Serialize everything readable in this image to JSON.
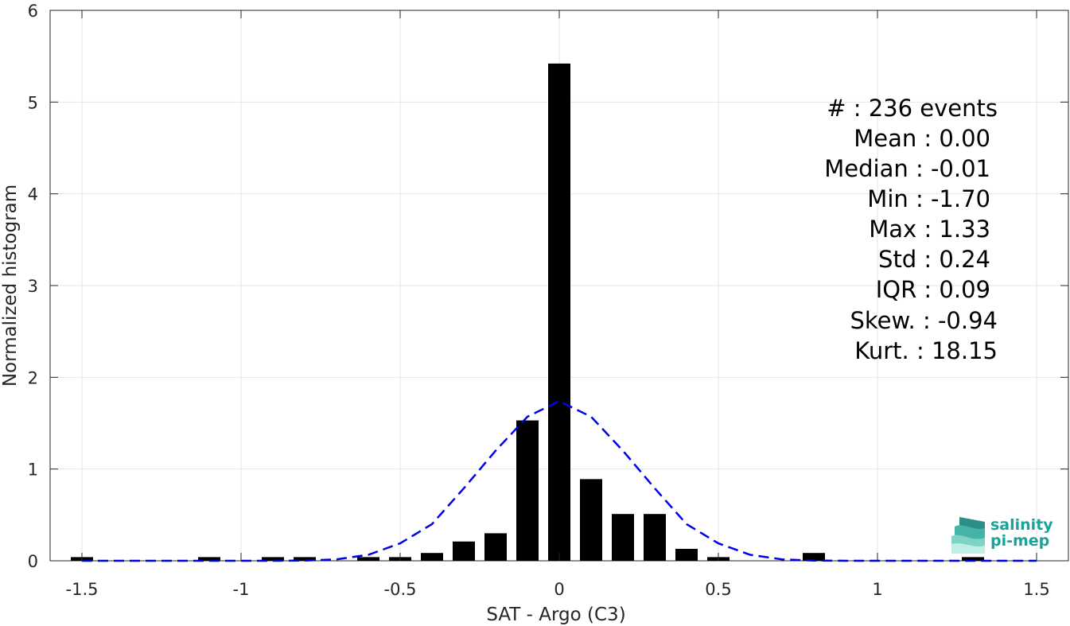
{
  "chart_data": {
    "type": "bar",
    "title": "",
    "xlabel": "SAT - Argo (C3)",
    "ylabel": "Normalized histogram",
    "xlim": [
      -1.6,
      1.6
    ],
    "ylim": [
      0,
      6
    ],
    "grid": true,
    "xticks": [
      -1.5,
      -1,
      -0.5,
      0,
      0.5,
      1,
      1.5
    ],
    "xtick_labels": [
      "-1.5",
      "-1",
      "-0.5",
      "0",
      "0.5",
      "1",
      "1.5"
    ],
    "yticks": [
      0,
      1,
      2,
      3,
      4,
      5,
      6
    ],
    "ytick_labels": [
      "0",
      "1",
      "2",
      "3",
      "4",
      "5",
      "6"
    ],
    "bar_color": "#000000",
    "bin_width": 0.1,
    "bins": [
      {
        "x": -1.5,
        "value": 0.04
      },
      {
        "x": -1.1,
        "value": 0.04
      },
      {
        "x": -0.9,
        "value": 0.04
      },
      {
        "x": -0.8,
        "value": 0.04
      },
      {
        "x": -0.6,
        "value": 0.04
      },
      {
        "x": -0.5,
        "value": 0.04
      },
      {
        "x": -0.4,
        "value": 0.085
      },
      {
        "x": -0.3,
        "value": 0.21
      },
      {
        "x": -0.2,
        "value": 0.3
      },
      {
        "x": -0.1,
        "value": 1.53
      },
      {
        "x": 0.0,
        "value": 5.42
      },
      {
        "x": 0.1,
        "value": 0.89
      },
      {
        "x": 0.2,
        "value": 0.51
      },
      {
        "x": 0.3,
        "value": 0.51
      },
      {
        "x": 0.4,
        "value": 0.13
      },
      {
        "x": 0.5,
        "value": 0.04
      },
      {
        "x": 0.8,
        "value": 0.085
      },
      {
        "x": 1.3,
        "value": 0.04
      }
    ],
    "fit_curve": {
      "style": "dashed",
      "color": "#0000e6",
      "x": [
        -1.5,
        -1.4,
        -1.3,
        -1.2,
        -1.1,
        -1.0,
        -0.9,
        -0.8,
        -0.7,
        -0.6,
        -0.5,
        -0.4,
        -0.3,
        -0.2,
        -0.1,
        0.0,
        0.1,
        0.2,
        0.3,
        0.4,
        0.5,
        0.6,
        0.7,
        0.8,
        0.9,
        1.0,
        1.1,
        1.2,
        1.3,
        1.4,
        1.5
      ],
      "y": [
        0,
        0,
        0,
        0,
        0,
        0,
        0,
        0.003,
        0.016,
        0.065,
        0.19,
        0.4,
        0.79,
        1.2,
        1.57,
        1.74,
        1.57,
        1.2,
        0.79,
        0.4,
        0.19,
        0.065,
        0.016,
        0.003,
        0,
        0,
        0,
        0,
        0,
        0,
        0
      ]
    },
    "annotations": [
      "#  : 236 events",
      "Mean : 0.00",
      "Median : -0.01",
      "Min : -1.70",
      "Max : 1.33",
      "Std : 0.24",
      "IQR : 0.09",
      "Skew. : -0.94",
      "Kurt. : 18.15"
    ]
  },
  "logo": {
    "line1": "salinity",
    "line2": "pi-mep",
    "color": "#1aa39a"
  }
}
